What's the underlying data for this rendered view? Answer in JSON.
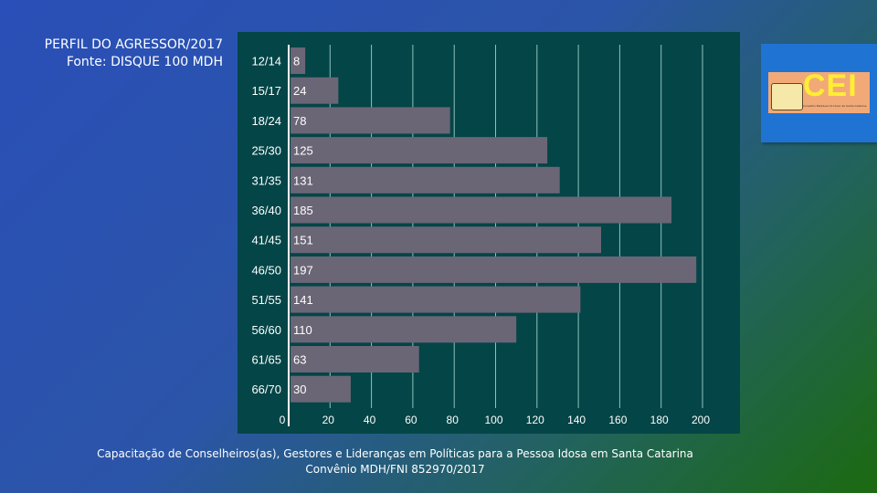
{
  "header": {
    "title": "PERFIL DO AGRESSOR/2017",
    "source": "Fonte: DISQUE 100 MDH"
  },
  "logo": {
    "text": "CEI",
    "subtitle": "Conselho Estadual do Idoso de Santa Catarina"
  },
  "footer": {
    "line1": "Capacitação de Conselheiros(as), Gestores e Lideranças em Políticas para a Pessoa Idosa em Santa Catarina",
    "line2": "Convênio MDH/FNI 852970/2017"
  },
  "chart_data": {
    "type": "bar",
    "orientation": "horizontal",
    "categories": [
      "12/14",
      "15/17",
      "18/24",
      "25/30",
      "31/35",
      "36/40",
      "41/45",
      "46/50",
      "51/55",
      "56/60",
      "61/65",
      "66/70"
    ],
    "values": [
      8,
      24,
      78,
      125,
      131,
      185,
      151,
      197,
      141,
      110,
      63,
      30
    ],
    "xlim": [
      0,
      200
    ],
    "xticks": [
      0,
      20,
      40,
      60,
      80,
      100,
      120,
      140,
      160,
      180,
      200
    ],
    "grid": true,
    "colors": {
      "background": "#044547",
      "bar": "#6a6676",
      "grid": "#8fc2bf",
      "text": "#ffffff"
    }
  }
}
